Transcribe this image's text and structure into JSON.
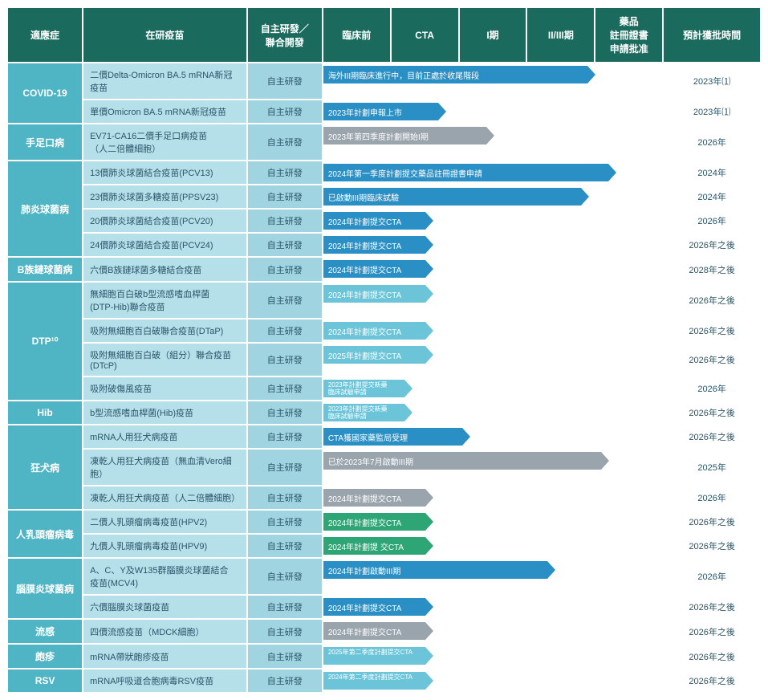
{
  "headers": {
    "indication": "適應症",
    "vaccine": "在研疫苗",
    "devtype": "自主研發／\n聯合開發",
    "preclinical": "臨床前",
    "cta": "CTA",
    "phase1": "I期",
    "phase23": "II/III期",
    "regsubmit": "藥品\n註冊證書\n申請批准",
    "approval": "預計獲批時間"
  },
  "columns": {
    "col1_cat_pct": 10,
    "col2_vac_pct": 22,
    "col3_dev_pct": 10,
    "col4_stage_pct": 45,
    "col5_time_pct": 13,
    "stage_subcols": 5
  },
  "colors": {
    "header_bg": "#1a6b5e",
    "cat_bg": "#4fb5c4",
    "vac_bg": "#b5e0ea",
    "dev_bg": "#a0d4e0",
    "bar_blue_dk": "#2a8fc4",
    "bar_blue_lt": "#6bc4d8",
    "bar_gray": "#9aa4ac",
    "bar_green": "#2ea574",
    "text": "#2a5568"
  },
  "categories": [
    {
      "name": "COVID-19",
      "rows": [
        {
          "vaccine": "二價Delta-Omicron BA.5 mRNA新冠疫苗",
          "dev": "自主研發",
          "bar": {
            "label": "海外III期臨床進行中，目前正處於收尾階段",
            "color": "#2a8fc4",
            "start": 0,
            "end": 78
          },
          "time": "2023年⑴"
        },
        {
          "vaccine": "單價Omicron BA.5 mRNA新冠疫苗",
          "dev": "自主研發",
          "bar": {
            "label": "2023年計劃申報上市",
            "color": "#2a8fc4",
            "start": 0,
            "end": 34
          },
          "time": "2023年⑴"
        }
      ]
    },
    {
      "name": "手足口病",
      "rows": [
        {
          "vaccine": "EV71-CA16二價手足口病疫苗\n（人二倍體細胞）",
          "dev": "自主研發",
          "bar": {
            "label": "2023年第四季度計劃開始I期",
            "color": "#9aa4ac",
            "start": 0,
            "end": 48
          },
          "time": "2026年"
        }
      ]
    },
    {
      "name": "肺炎球菌病",
      "rows": [
        {
          "vaccine": "13價肺炎球菌結合疫苗(PCV13)",
          "dev": "自主研發",
          "bar": {
            "label": "2024年第一季度計劃提交藥品註冊證書申請",
            "color": "#2a8fc4",
            "start": 0,
            "end": 84
          },
          "time": "2024年"
        },
        {
          "vaccine": "23價肺炎球菌多糖疫苗(PPSV23)",
          "dev": "自主研發",
          "bar": {
            "label": "已啟動III期臨床試驗",
            "color": "#2a8fc4",
            "start": 0,
            "end": 76
          },
          "time": "2024年"
        },
        {
          "vaccine": "20價肺炎球菌結合疫苗(PCV20)",
          "dev": "自主研發",
          "bar": {
            "label": "2024年計劃提交CTA",
            "color": "#2a8fc4",
            "start": 0,
            "end": 30
          },
          "time": "2026年"
        },
        {
          "vaccine": "24價肺炎球菌結合疫苗(PCV24)",
          "dev": "自主研發",
          "bar": {
            "label": "2024年計劃提交CTA",
            "color": "#2a8fc4",
            "start": 0,
            "end": 30
          },
          "time": "2026年之後"
        }
      ]
    },
    {
      "name": "B族鏈球菌病",
      "rows": [
        {
          "vaccine": "六價B族鏈球菌多糖結合疫苗",
          "dev": "自主研發",
          "bar": {
            "label": "2024年計劃提交CTA",
            "color": "#2a8fc4",
            "start": 0,
            "end": 30
          },
          "time": "2028年之後"
        }
      ]
    },
    {
      "name": "DTP¹⁰",
      "rows": [
        {
          "vaccine": "無細胞百白破b型流感嗜血桿菌\n(DTP-Hib)聯合疫苗",
          "dev": "自主研發",
          "bar": {
            "label": "2024年計劃提交CTA",
            "color": "#6bc4d8",
            "start": 0,
            "end": 30
          },
          "time": "2026年之後"
        },
        {
          "vaccine": "吸附無細胞百白破聯合疫苗(DTaP)",
          "dev": "自主研發",
          "bar": {
            "label": "2024年計劃提交CTA",
            "color": "#6bc4d8",
            "start": 0,
            "end": 30
          },
          "time": "2026年之後"
        },
        {
          "vaccine": "吸附無細胞百白破（組分）聯合疫苗(DTcP)",
          "dev": "自主研發",
          "bar": {
            "label": "2025年計劃提交CTA",
            "color": "#6bc4d8",
            "start": 0,
            "end": 30
          },
          "time": "2026年之後"
        },
        {
          "vaccine": "吸附破傷風疫苗",
          "dev": "自主研發",
          "bar": {
            "label": "2023年計劃提交新藥\n臨床試驗申請",
            "color": "#6bc4d8",
            "start": 0,
            "end": 24,
            "small": true
          },
          "time": "2026年"
        }
      ]
    },
    {
      "name": "Hib",
      "rows": [
        {
          "vaccine": "b型流感嗜血桿菌(Hib)疫苗",
          "dev": "自主研發",
          "bar": {
            "label": "2023年計劃提交新藥\n臨床試驗申請",
            "color": "#6bc4d8",
            "start": 0,
            "end": 24,
            "small": true
          },
          "time": "2026年之後"
        }
      ]
    },
    {
      "name": "狂犬病",
      "rows": [
        {
          "vaccine": "mRNA人用狂犬病疫苗",
          "dev": "自主研發",
          "bar": {
            "label": "CTA獲國家藥監局受理",
            "color": "#2a8fc4",
            "start": 0,
            "end": 41
          },
          "time": "2026年之後"
        },
        {
          "vaccine": "凍乾人用狂犬病疫苗（無血清Vero細胞）",
          "dev": "自主研發",
          "bar": {
            "label": "已於2023年7月啟動III期",
            "color": "#9aa4ac",
            "start": 0,
            "end": 82
          },
          "time": "2025年"
        },
        {
          "vaccine": "凍乾人用狂犬病疫苗（人二倍體細胞）",
          "dev": "自主研發",
          "bar": {
            "label": "2024年計劃提交CTA",
            "color": "#9aa4ac",
            "start": 0,
            "end": 30
          },
          "time": "2026年"
        }
      ]
    },
    {
      "name": "人乳頭瘤病毒",
      "rows": [
        {
          "vaccine": "二價人乳頭瘤病毒疫苗(HPV2)",
          "dev": "自主研發",
          "bar": {
            "label": "2024年計劃提交CTA",
            "color": "#2ea574",
            "start": 0,
            "end": 30
          },
          "time": "2026年之後"
        },
        {
          "vaccine": "九價人乳頭瘤病毒疫苗(HPV9)",
          "dev": "自主研發",
          "bar": {
            "label": "2024年計劃提 交CTA",
            "color": "#2ea574",
            "start": 0,
            "end": 30
          },
          "time": "2026年之後"
        }
      ]
    },
    {
      "name": "腦膜炎球菌病",
      "rows": [
        {
          "vaccine": "A、C、Y及W135群腦膜炎球菌結合\n疫苗(MCV4)",
          "dev": "自主研發",
          "bar": {
            "label": "2024年計劃啟動III期",
            "color": "#2a8fc4",
            "start": 0,
            "end": 66
          },
          "time": "2026年"
        },
        {
          "vaccine": "六價腦膜炎球菌疫苗",
          "dev": "自主研發",
          "bar": {
            "label": "2024年計劃提交CTA",
            "color": "#2a8fc4",
            "start": 0,
            "end": 30
          },
          "time": "2026年之後"
        }
      ]
    },
    {
      "name": "流感",
      "rows": [
        {
          "vaccine": "四價流感疫苗（MDCK細胞）",
          "dev": "自主研發",
          "bar": {
            "label": "2024年計劃提交CTA",
            "color": "#9aa4ac",
            "start": 0,
            "end": 30
          },
          "time": "2026年之後"
        }
      ]
    },
    {
      "name": "皰疹",
      "rows": [
        {
          "vaccine": "mRNA帶狀皰疹疫苗",
          "dev": "自主研發",
          "bar": {
            "label": "2025年第二季度計劃提交CTA",
            "color": "#6bc4d8",
            "start": 0,
            "end": 30,
            "small": true
          },
          "time": "2026年之後"
        }
      ]
    },
    {
      "name": "RSV",
      "rows": [
        {
          "vaccine": "mRNA呼吸道合胞病毒RSV疫苗",
          "dev": "自主研發",
          "bar": {
            "label": "2024年第二季度計劃提交CTA",
            "color": "#6bc4d8",
            "start": 0,
            "end": 30,
            "small": true
          },
          "time": "2026年之後"
        }
      ]
    }
  ]
}
